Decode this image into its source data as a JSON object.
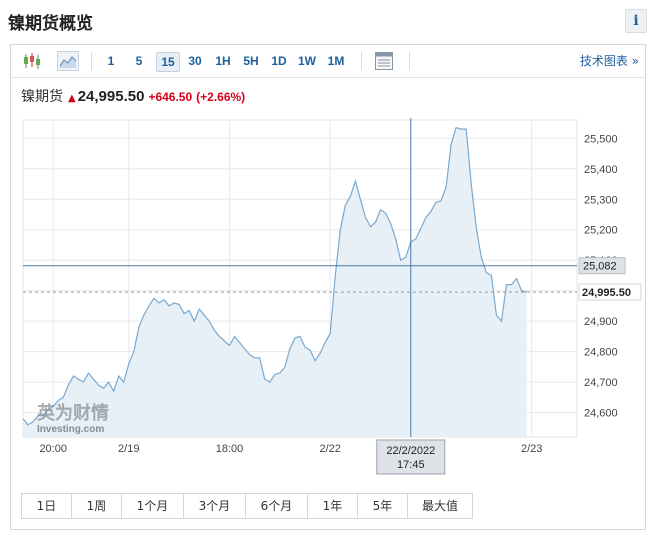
{
  "page": {
    "title": "镍期货概览",
    "info_label": "i"
  },
  "toolbar": {
    "chart_icons": [
      "candlestick-icon",
      "area-chart-icon"
    ],
    "timeframes": [
      "1",
      "5",
      "15",
      "30",
      "1H",
      "5H",
      "1D",
      "1W",
      "1M"
    ],
    "active_timeframe": "15",
    "table_icon": "table-icon",
    "tech_chart_label": "技术图表 »"
  },
  "quote": {
    "name": "镍期货",
    "price": "24,995.50",
    "change": "+646.50",
    "change_pct": "(+2.66%)",
    "arrow": "▲",
    "colors": {
      "up": "#d6001c"
    }
  },
  "chart_data": {
    "type": "area",
    "title": "",
    "y_tick_labels": [
      "25,500",
      "25,400",
      "25,300",
      "25,200",
      "25,100",
      "25,000",
      "24,900",
      "24,800",
      "24,700",
      "24,600"
    ],
    "x_tick_labels": [
      "20:00",
      "2/19",
      "18:00",
      "2/22",
      "2/23"
    ],
    "ylim": [
      24520,
      25560
    ],
    "x_range": [
      0,
      110
    ],
    "x_ticks": [
      6,
      21,
      41,
      61,
      101
    ],
    "values": [
      24580,
      24560,
      24570,
      24590,
      24590,
      24610,
      24620,
      24640,
      24650,
      24690,
      24720,
      24710,
      24700,
      24730,
      24710,
      24690,
      24680,
      24700,
      24670,
      24720,
      24700,
      24760,
      24800,
      24880,
      24920,
      24950,
      24975,
      24960,
      24970,
      24950,
      24960,
      24955,
      24925,
      24935,
      24900,
      24940,
      24920,
      24900,
      24870,
      24850,
      24835,
      24820,
      24850,
      24830,
      24810,
      24790,
      24780,
      24780,
      24710,
      24700,
      24725,
      24730,
      24750,
      24810,
      24845,
      24850,
      24815,
      24805,
      24770,
      24795,
      24830,
      24860,
      25050,
      25200,
      25280,
      25310,
      25360,
      25300,
      25240,
      25210,
      25225,
      25265,
      25255,
      25220,
      25170,
      25100,
      25110,
      25160,
      25170,
      25205,
      25240,
      25260,
      25290,
      25295,
      25340,
      25480,
      25535,
      25530,
      25530,
      25350,
      25205,
      25110,
      25060,
      25050,
      24920,
      24900,
      25020,
      25020,
      25040,
      25000,
      24995
    ],
    "crosshair": {
      "x": 77,
      "y": 25082,
      "y_label": "25,082",
      "x_label_line1": "22/2/2022",
      "x_label_line2": "17:45"
    },
    "last_value_label": "24,995.50",
    "watermark": {
      "line1": "英为财情",
      "line2": "Investing.com"
    },
    "colors": {
      "line": "#7aa9cf",
      "fill": "#e7eff7",
      "grid": "#e6e9ed",
      "crosshair": "#4a7aa6"
    }
  },
  "range_buttons": [
    "1日",
    "1周",
    "1个月",
    "3个月",
    "6个月",
    "1年",
    "5年",
    "最大值"
  ]
}
